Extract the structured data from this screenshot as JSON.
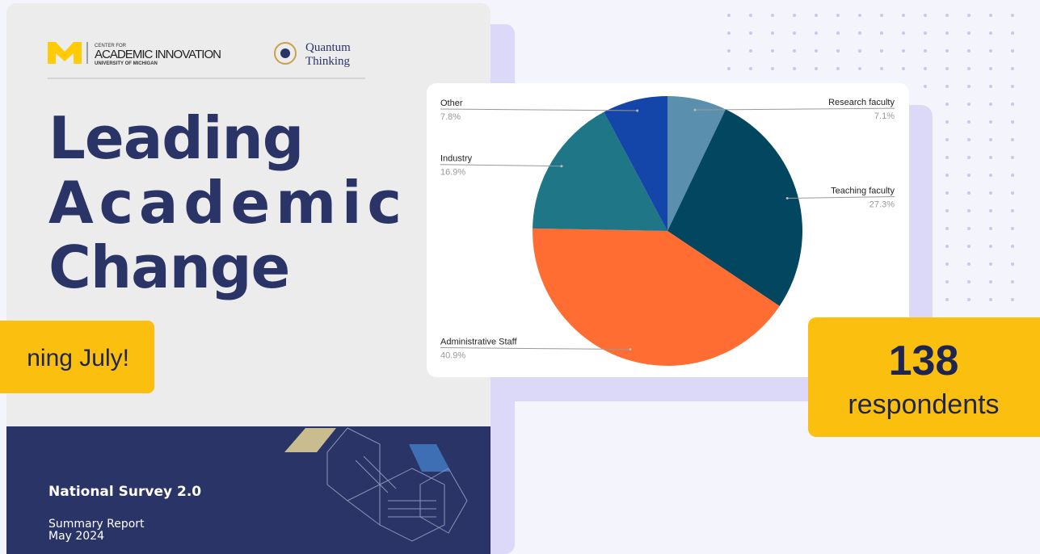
{
  "cover": {
    "logo_um": {
      "line1": "CENTER FOR",
      "line2": "ACADEMIC INNOVATION",
      "line3": "UNIVERSITY OF MICHIGAN"
    },
    "logo_qt": {
      "line1": "Quantum",
      "line2": "Thinking"
    },
    "title": [
      "Leading",
      "Academic",
      "Change"
    ],
    "survey": "National Survey 2.0",
    "report": "Summary Report",
    "date": "May 2024"
  },
  "badge": "ning July!",
  "stat": {
    "number": "138",
    "label": "respondents"
  },
  "chart_data": {
    "type": "pie",
    "categories": [
      "Research faculty",
      "Teaching faculty",
      "Administrative Staff",
      "Industry",
      "Other"
    ],
    "values": [
      7.1,
      27.3,
      40.9,
      16.9,
      7.8
    ],
    "value_labels": [
      "7.1%",
      "27.3%",
      "40.9%",
      "16.9%",
      "7.8%"
    ],
    "colors": [
      "#5a8fad",
      "#02475f",
      "#ff6d33",
      "#1e7686",
      "#1346a8"
    ]
  }
}
